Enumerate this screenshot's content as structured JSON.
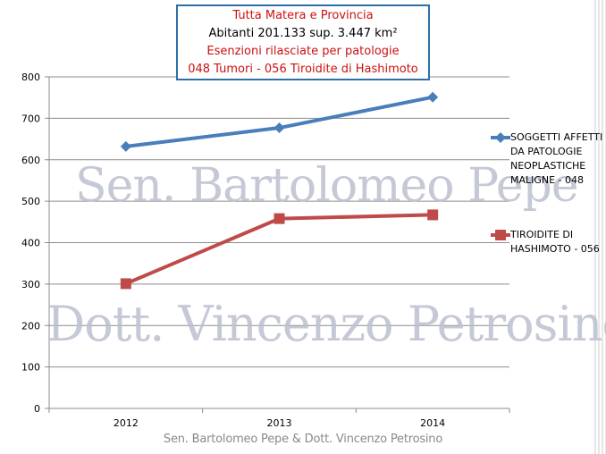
{
  "title_box": {
    "line1": "Tutta Matera e Provincia",
    "line2": "Abitanti 201.133 sup. 3.447 km²",
    "line3": "Esenzioni rilasciate per patologie",
    "line4": "048 Tumori - 056 Tiroidite di Hashimoto"
  },
  "watermarks": {
    "line1": "Sen. Bartolomeo Pepe",
    "line2": "Dott. Vincenzo Petrosino"
  },
  "footer": "Sen. Bartolomeo Pepe &  Dott. Vincenzo Petrosino",
  "colors": {
    "series1": "#4a7ebb",
    "series2": "#be4b48",
    "title_red": "#cc1111",
    "box_border": "#2e6fa8"
  },
  "chart_data": {
    "type": "line",
    "categories": [
      "2012",
      "2013",
      "2014"
    ],
    "series": [
      {
        "name": "SOGGETTI AFFETTI DA PATOLOGIE NEOPLASTICHE MALIGNE - 048",
        "values": [
          632,
          677,
          751
        ],
        "color": "#4a7ebb",
        "marker": "diamond"
      },
      {
        "name": "TIROIDITE DI HASHIMOTO - 056",
        "values": [
          301,
          458,
          467
        ],
        "color": "#be4b48",
        "marker": "square"
      }
    ],
    "yticks": [
      "0",
      "100",
      "200",
      "300",
      "400",
      "500",
      "600",
      "700",
      "800"
    ],
    "ylim": [
      0,
      800
    ],
    "grid": true,
    "legend_position": "right"
  }
}
